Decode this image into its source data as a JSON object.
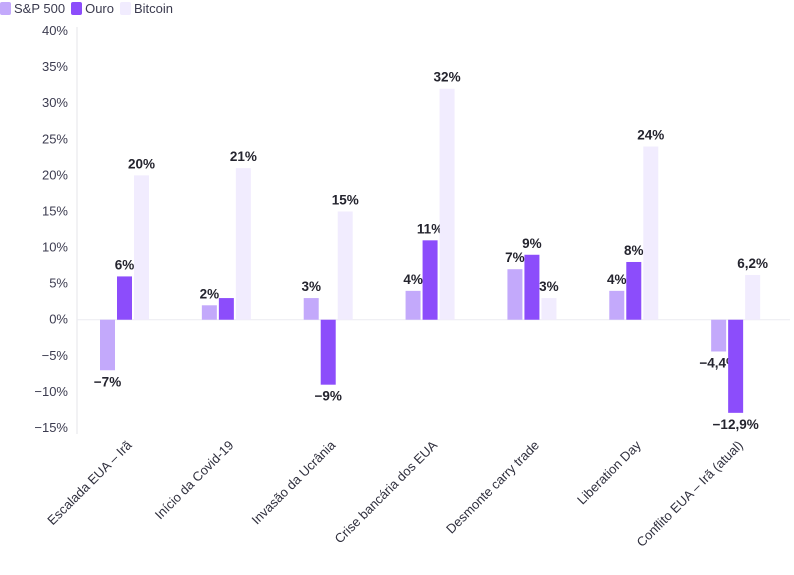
{
  "chart_data": {
    "type": "bar",
    "title": "",
    "xlabel": "",
    "ylabel": "",
    "ylim": [
      -15,
      40
    ],
    "y_ticks": [
      -15,
      -10,
      -5,
      0,
      5,
      10,
      15,
      20,
      25,
      30,
      35,
      40
    ],
    "y_tick_labels": [
      "−15%",
      "−10%",
      "−5%",
      "0%",
      "5%",
      "10%",
      "15%",
      "20%",
      "25%",
      "30%",
      "35%",
      "40%"
    ],
    "legend_position": "top-left",
    "grid": false,
    "categories": [
      "Escalada EUA – Irã",
      "Início da Covid-19",
      "Invasão da Ucrânia",
      "Crise bancária dos EUA",
      "Desmonte carry trade",
      "Liberation Day",
      "Conflito EUA – Irã (atual)"
    ],
    "series": [
      {
        "name": "S&P 500",
        "color": "#c3a9fb",
        "values": [
          -7,
          2,
          3,
          4,
          7,
          4,
          -4.4
        ],
        "labels": [
          "−7%",
          "2%",
          "3%",
          "4%",
          "7%",
          "4%",
          "−4,4%"
        ]
      },
      {
        "name": "Ouro",
        "color": "#8c4dfb",
        "values": [
          6,
          3,
          -9,
          11,
          9,
          8,
          -12.9
        ],
        "labels": [
          "6%",
          "",
          "−9%",
          "11%",
          "9%",
          "8%",
          "−12,9%"
        ]
      },
      {
        "name": "Bitcoin",
        "color": "#f1ecfe",
        "values": [
          20,
          21,
          15,
          32,
          3,
          24,
          6.2
        ],
        "labels": [
          "20%",
          "21%",
          "15%",
          "32%",
          "3%",
          "24%",
          "6,2%"
        ]
      }
    ]
  }
}
